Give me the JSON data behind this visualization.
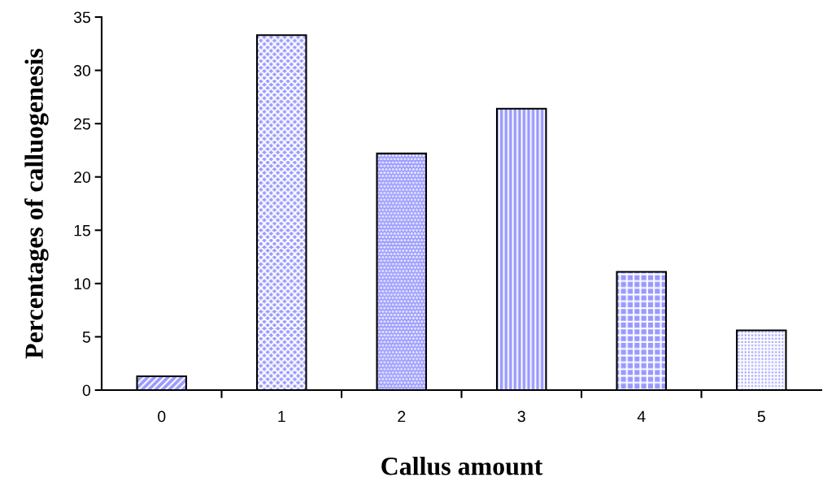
{
  "chart_data": {
    "type": "bar",
    "xlabel": "Callus amount",
    "ylabel": "Percentages of calluogenesis",
    "categories": [
      "0",
      "1",
      "2",
      "3",
      "4",
      "5"
    ],
    "values": [
      1.3,
      33.3,
      22.2,
      26.4,
      11.1,
      5.6
    ],
    "color": "#9999ff",
    "ylim": [
      0,
      35
    ],
    "yticks": [
      0,
      5,
      10,
      15,
      20,
      25,
      30,
      35
    ],
    "grid": false,
    "legend": false
  }
}
